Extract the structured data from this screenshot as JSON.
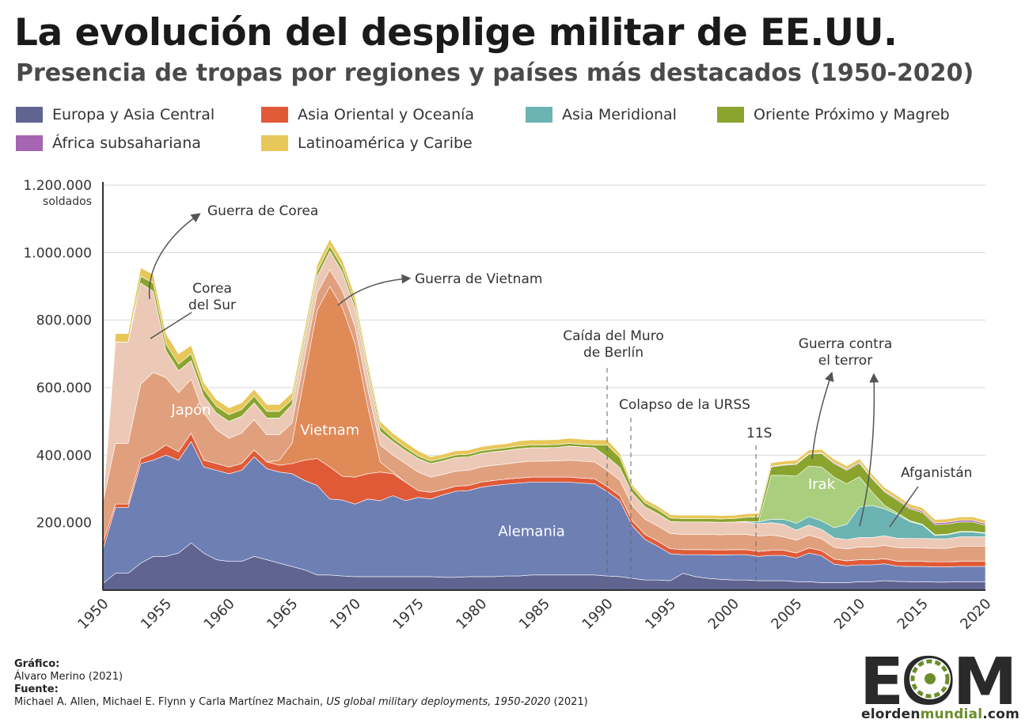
{
  "header": {
    "title": "La evolución del desplige militar de EE.UU.",
    "subtitle": "Presencia de tropas por regiones y países más destacados (1950-2020)"
  },
  "colors": {
    "europa": "#6e7fb4",
    "europa_dark": "#5f6490",
    "asia_oriental": "#e05a38",
    "japon": "#e0a07e",
    "corea": "#ecc9b6",
    "vietnam": "#e08a58",
    "asia_meridional": "#6cb3b3",
    "oriente": "#8aa42e",
    "irak": "#a9cf7e",
    "africa": "#a665b0",
    "latinoamerica": "#e8c75a"
  },
  "legend": [
    {
      "label": "Europa y Asia Central",
      "color": "#5f6490"
    },
    {
      "label": "Asia Oriental y Oceanía",
      "color": "#e05a38"
    },
    {
      "label": "Asia Meridional",
      "color": "#6cb3b3"
    },
    {
      "label": "Oriente Próximo y Magreb",
      "color": "#8aa42e"
    },
    {
      "label": "África subsahariana",
      "color": "#a665b0"
    },
    {
      "label": "Latinoamérica y Caribe",
      "color": "#e8c75a"
    }
  ],
  "chart_data": {
    "type": "area",
    "stacked": true,
    "ylabel": "soldados",
    "ylim": [
      0,
      1200000
    ],
    "yticks": [
      200000,
      400000,
      600000,
      800000,
      1000000,
      1200000
    ],
    "ytick_labels": [
      "200.000",
      "400.000",
      "600.000",
      "800.000",
      "1.000.000",
      "1.200.000"
    ],
    "xticks": [
      1950,
      1955,
      1960,
      1965,
      1970,
      1975,
      1980,
      1985,
      1990,
      1995,
      2000,
      2005,
      2010,
      2015,
      2020
    ],
    "x": [
      1950,
      1951,
      1952,
      1953,
      1954,
      1955,
      1956,
      1957,
      1958,
      1959,
      1960,
      1961,
      1962,
      1963,
      1964,
      1965,
      1966,
      1967,
      1968,
      1969,
      1970,
      1971,
      1972,
      1973,
      1974,
      1975,
      1976,
      1977,
      1978,
      1979,
      1980,
      1981,
      1982,
      1983,
      1984,
      1985,
      1986,
      1987,
      1988,
      1989,
      1990,
      1991,
      1992,
      1993,
      1994,
      1995,
      1996,
      1997,
      1998,
      1999,
      2000,
      2001,
      2002,
      2003,
      2004,
      2005,
      2006,
      2007,
      2008,
      2009,
      2010,
      2011,
      2012,
      2013,
      2014,
      2015,
      2016,
      2017,
      2018,
      2019,
      2020
    ],
    "series": [
      {
        "name": "Europa y Asia Central",
        "key": "europa_dark",
        "values": [
          20000,
          50000,
          50000,
          80000,
          100000,
          100000,
          110000,
          140000,
          110000,
          90000,
          85000,
          85000,
          100000,
          90000,
          80000,
          70000,
          60000,
          45000,
          45000,
          42000,
          40000,
          40000,
          40000,
          40000,
          40000,
          40000,
          40000,
          38000,
          38000,
          40000,
          40000,
          40000,
          42000,
          42000,
          45000,
          45000,
          45000,
          45000,
          45000,
          45000,
          42000,
          40000,
          35000,
          30000,
          30000,
          28000,
          50000,
          40000,
          35000,
          32000,
          30000,
          30000,
          28000,
          28000,
          28000,
          25000,
          25000,
          22000,
          22000,
          22000,
          25000,
          25000,
          28000,
          26000,
          25000,
          25000,
          24000,
          24000,
          25000,
          25000,
          25000
        ]
      },
      {
        "name": "Alemania",
        "key": "europa",
        "values": [
          100000,
          195000,
          195000,
          295000,
          285000,
          300000,
          275000,
          300000,
          255000,
          265000,
          260000,
          270000,
          295000,
          270000,
          270000,
          275000,
          265000,
          265000,
          225000,
          225000,
          215000,
          230000,
          225000,
          240000,
          225000,
          235000,
          230000,
          245000,
          255000,
          255000,
          265000,
          270000,
          272000,
          275000,
          275000,
          275000,
          275000,
          275000,
          272000,
          270000,
          250000,
          225000,
          155000,
          120000,
          100000,
          80000,
          55000,
          65000,
          70000,
          72000,
          75000,
          75000,
          72000,
          75000,
          75000,
          70000,
          85000,
          80000,
          55000,
          50000,
          50000,
          50000,
          50000,
          45000,
          45000,
          45000,
          45000,
          45000,
          45000,
          45000,
          45000
        ]
      },
      {
        "name": "Asia Oriental y Oceanía",
        "key": "asia_oriental",
        "values": [
          20000,
          10000,
          10000,
          15000,
          20000,
          30000,
          25000,
          25000,
          20000,
          20000,
          20000,
          20000,
          20000,
          20000,
          20000,
          30000,
          60000,
          80000,
          95000,
          70000,
          80000,
          75000,
          85000,
          65000,
          55000,
          20000,
          20000,
          15000,
          15000,
          15000,
          15000,
          15000,
          15000,
          15000,
          15000,
          15000,
          15000,
          15000,
          15000,
          15000,
          15000,
          15000,
          15000,
          15000,
          15000,
          15000,
          15000,
          15000,
          15000,
          15000,
          15000,
          15000,
          15000,
          15000,
          15000,
          15000,
          15000,
          15000,
          15000,
          15000,
          15000,
          15000,
          15000,
          15000,
          15000,
          15000,
          15000,
          15000,
          15000,
          15000,
          15000
        ]
      },
      {
        "name": "Vietnam",
        "key": "vietnam",
        "values": [
          0,
          0,
          0,
          0,
          0,
          0,
          0,
          0,
          0,
          0,
          0,
          0,
          0,
          0,
          15000,
          60000,
          250000,
          440000,
          535000,
          500000,
          395000,
          200000,
          30000,
          5000,
          0,
          0,
          0,
          0,
          0,
          0,
          0,
          0,
          0,
          0,
          0,
          0,
          0,
          0,
          0,
          0,
          0,
          0,
          0,
          0,
          0,
          0,
          0,
          0,
          0,
          0,
          0,
          0,
          0,
          0,
          0,
          0,
          0,
          0,
          0,
          0,
          0,
          0,
          0,
          0,
          0,
          0,
          0,
          0,
          0,
          0,
          0
        ]
      },
      {
        "name": "Japón",
        "key": "japon",
        "values": [
          120000,
          180000,
          180000,
          220000,
          240000,
          200000,
          175000,
          160000,
          140000,
          100000,
          85000,
          90000,
          90000,
          80000,
          75000,
          60000,
          55000,
          50000,
          50000,
          50000,
          50000,
          50000,
          50000,
          50000,
          55000,
          55000,
          45000,
          45000,
          45000,
          45000,
          45000,
          45000,
          45000,
          47000,
          47000,
          47000,
          48000,
          50000,
          50000,
          50000,
          48000,
          45000,
          45000,
          45000,
          45000,
          45000,
          45000,
          45000,
          45000,
          45000,
          45000,
          45000,
          45000,
          45000,
          40000,
          38000,
          38000,
          35000,
          35000,
          35000,
          38000,
          38000,
          40000,
          40000,
          40000,
          40000,
          40000,
          40000,
          45000,
          45000,
          45000
        ]
      },
      {
        "name": "Corea del Sur",
        "key": "corea",
        "values": [
          0,
          300000,
          300000,
          300000,
          240000,
          80000,
          65000,
          55000,
          50000,
          50000,
          50000,
          50000,
          50000,
          50000,
          50000,
          55000,
          50000,
          50000,
          55000,
          55000,
          55000,
          50000,
          40000,
          40000,
          38000,
          40000,
          40000,
          40000,
          40000,
          40000,
          40000,
          40000,
          40000,
          40000,
          40000,
          40000,
          40000,
          42000,
          42000,
          42000,
          40000,
          38000,
          37000,
          37000,
          37000,
          36000,
          37000,
          37000,
          37000,
          37000,
          37000,
          37000,
          37000,
          37000,
          37000,
          30000,
          30000,
          28000,
          28000,
          28000,
          28000,
          28000,
          28000,
          28000,
          28000,
          28000,
          28000,
          28000,
          28000,
          28000,
          28000
        ]
      },
      {
        "name": "Asia Meridional",
        "key": "asia_meridional",
        "values": [
          0,
          0,
          0,
          0,
          0,
          0,
          0,
          0,
          0,
          0,
          0,
          0,
          0,
          0,
          0,
          0,
          0,
          0,
          0,
          0,
          0,
          0,
          0,
          0,
          0,
          0,
          0,
          0,
          0,
          0,
          0,
          0,
          0,
          0,
          0,
          0,
          0,
          0,
          0,
          0,
          0,
          0,
          0,
          0,
          0,
          0,
          0,
          0,
          0,
          0,
          0,
          2000,
          5000,
          10000,
          15000,
          20000,
          25000,
          25000,
          30000,
          45000,
          90000,
          95000,
          80000,
          70000,
          50000,
          40000,
          10000,
          12000,
          14000,
          14000,
          10000
        ]
      },
      {
        "name": "Irak",
        "key": "irak",
        "values": [
          0,
          0,
          0,
          0,
          0,
          0,
          0,
          0,
          0,
          0,
          0,
          0,
          0,
          0,
          0,
          0,
          0,
          0,
          0,
          0,
          0,
          0,
          0,
          0,
          0,
          0,
          0,
          0,
          0,
          0,
          0,
          0,
          0,
          0,
          0,
          0,
          0,
          0,
          0,
          0,
          0,
          0,
          0,
          0,
          0,
          0,
          0,
          0,
          0,
          0,
          0,
          0,
          0,
          130000,
          130000,
          140000,
          150000,
          160000,
          150000,
          120000,
          90000,
          40000,
          10000,
          5000,
          3000,
          2000,
          2000,
          2000,
          2000,
          2000,
          2000
        ]
      },
      {
        "name": "Oriente Próximo y Magreb",
        "key": "oriente",
        "values": [
          0,
          0,
          0,
          20000,
          25000,
          20000,
          20000,
          20000,
          20000,
          20000,
          20000,
          20000,
          20000,
          20000,
          20000,
          15000,
          15000,
          15000,
          15000,
          15000,
          15000,
          15000,
          15000,
          10000,
          10000,
          8000,
          8000,
          8000,
          8000,
          8000,
          8000,
          8000,
          8000,
          8000,
          8000,
          8000,
          8000,
          8000,
          8000,
          8000,
          35000,
          30000,
          15000,
          12000,
          12000,
          10000,
          10000,
          10000,
          10000,
          10000,
          10000,
          12000,
          15000,
          25000,
          30000,
          35000,
          35000,
          40000,
          40000,
          40000,
          40000,
          40000,
          40000,
          38000,
          35000,
          35000,
          30000,
          30000,
          28000,
          28000,
          22000
        ]
      },
      {
        "name": "África subsahariana",
        "key": "africa",
        "values": [
          0,
          0,
          0,
          0,
          0,
          0,
          0,
          0,
          0,
          0,
          0,
          0,
          0,
          0,
          0,
          0,
          0,
          0,
          0,
          0,
          0,
          0,
          0,
          0,
          0,
          0,
          0,
          0,
          0,
          0,
          0,
          0,
          0,
          0,
          0,
          0,
          0,
          0,
          0,
          0,
          0,
          0,
          0,
          0,
          0,
          0,
          0,
          0,
          0,
          0,
          0,
          0,
          1000,
          2000,
          2000,
          2000,
          2000,
          2000,
          3000,
          3000,
          3000,
          3000,
          3000,
          3000,
          4000,
          4000,
          5000,
          5000,
          5000,
          5000,
          5000
        ]
      },
      {
        "name": "Latinoamérica y Caribe",
        "key": "latinoamerica",
        "values": [
          0,
          25000,
          25000,
          25000,
          25000,
          30000,
          30000,
          25000,
          20000,
          20000,
          20000,
          20000,
          20000,
          20000,
          20000,
          20000,
          20000,
          20000,
          20000,
          20000,
          20000,
          18000,
          15000,
          15000,
          15000,
          15000,
          12000,
          12000,
          12000,
          12000,
          12000,
          12000,
          12000,
          15000,
          15000,
          15000,
          15000,
          15000,
          15000,
          15000,
          15000,
          12000,
          10000,
          10000,
          10000,
          10000,
          10000,
          10000,
          10000,
          10000,
          10000,
          10000,
          10000,
          10000,
          10000,
          10000,
          10000,
          10000,
          10000,
          10000,
          10000,
          10000,
          10000,
          10000,
          10000,
          10000,
          10000,
          10000,
          10000,
          10000,
          10000
        ]
      }
    ],
    "inline_labels": [
      {
        "text": "Japón",
        "year": 1957,
        "value": 520000
      },
      {
        "text": "Vietnam",
        "year": 1968,
        "value": 460000
      },
      {
        "text": "Alemania",
        "year": 1984,
        "value": 160000
      },
      {
        "text": "Irak",
        "year": 2007,
        "value": 300000
      }
    ],
    "annotations": [
      {
        "id": "korea-war",
        "text": "Guerra de Corea"
      },
      {
        "id": "south-korea",
        "lines": [
          "Corea",
          "del Sur"
        ]
      },
      {
        "id": "vietnam-war",
        "text": "Guerra de Vietnam"
      },
      {
        "id": "berlin",
        "lines": [
          "Caída del Muro",
          "de Berlín"
        ]
      },
      {
        "id": "ussr",
        "text": "Colapso de la URSS"
      },
      {
        "id": "s11",
        "text": "11S"
      },
      {
        "id": "terror",
        "lines": [
          "Guerra contra",
          "el terror"
        ]
      },
      {
        "id": "afgan",
        "text": "Afganistán"
      }
    ]
  },
  "footer": {
    "grafico_label": "Gráfico:",
    "grafico_author": "Álvaro Merino (2021)",
    "fuente_label": "Fuente:",
    "fuente_authors": "Michael A. Allen, Michael E. Flynn y Carla Martínez Machain,",
    "fuente_title": "US global military deployments, 1950-2020",
    "fuente_year": "(2021)"
  },
  "logo": {
    "letters": "EOM",
    "url_part1": "elorden",
    "url_part2": "mundial",
    "url_part3": ".com"
  }
}
